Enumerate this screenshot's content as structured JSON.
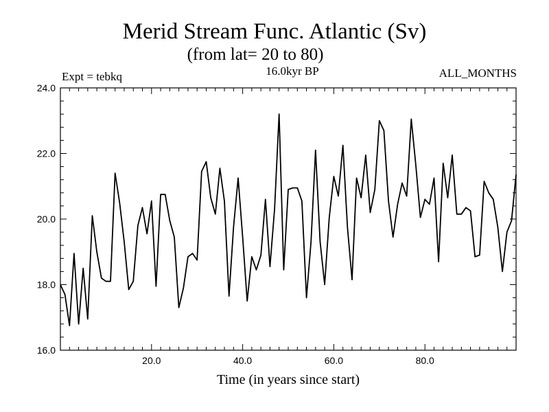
{
  "chart_data": {
    "type": "line",
    "title": "Merid Stream Func. Atlantic (Sv)",
    "subtitle": "(from lat= 20 to 80)",
    "annotation_left": "Expt = tebkq",
    "annotation_center": "16.0kyr BP",
    "annotation_right": "ALL_MONTHS",
    "xlabel": "Time (in years since start)",
    "ylabel": "",
    "xlim": [
      0,
      100
    ],
    "ylim": [
      16.0,
      24.0
    ],
    "xticks": [
      20.0,
      40.0,
      60.0,
      80.0
    ],
    "xtick_labels": [
      "20.0",
      "40.0",
      "60.0",
      "80.0"
    ],
    "yticks": [
      16.0,
      18.0,
      20.0,
      22.0,
      24.0
    ],
    "ytick_labels": [
      "16.0",
      "18.0",
      "20.0",
      "22.0",
      "24.0"
    ],
    "grid": false,
    "line_color": "#000000",
    "series": [
      {
        "name": "Merid Stream Func. Atlantic",
        "x": [
          0,
          1,
          2,
          3,
          4,
          5,
          6,
          7,
          8,
          9,
          10,
          11,
          12,
          13,
          14,
          15,
          16,
          17,
          18,
          19,
          20,
          21,
          22,
          23,
          24,
          25,
          26,
          27,
          28,
          29,
          30,
          31,
          32,
          33,
          34,
          35,
          36,
          37,
          38,
          39,
          40,
          41,
          42,
          43,
          44,
          45,
          46,
          47,
          48,
          49,
          50,
          51,
          52,
          53,
          54,
          55,
          56,
          57,
          58,
          59,
          60,
          61,
          62,
          63,
          64,
          65,
          66,
          67,
          68,
          69,
          70,
          71,
          72,
          73,
          74,
          75,
          76,
          77,
          78,
          79,
          80,
          81,
          82,
          83,
          84,
          85,
          86,
          87,
          88,
          89,
          90,
          91,
          92,
          93,
          94,
          95,
          96,
          97,
          98,
          99,
          100
        ],
        "values": [
          18.0,
          17.7,
          16.75,
          18.95,
          16.8,
          18.5,
          16.95,
          20.1,
          19.0,
          18.2,
          18.1,
          18.1,
          21.4,
          20.5,
          19.3,
          17.85,
          18.1,
          19.8,
          20.35,
          19.55,
          20.55,
          17.95,
          20.75,
          20.75,
          19.95,
          19.45,
          17.3,
          17.9,
          18.85,
          18.95,
          18.75,
          21.45,
          21.75,
          20.65,
          20.15,
          21.55,
          20.55,
          17.65,
          19.75,
          21.25,
          19.45,
          17.5,
          18.85,
          18.45,
          18.9,
          20.6,
          18.55,
          20.3,
          23.2,
          18.45,
          20.9,
          20.95,
          20.95,
          20.55,
          17.6,
          19.3,
          22.1,
          19.3,
          18.0,
          20.05,
          21.3,
          20.7,
          22.25,
          19.75,
          18.15,
          21.25,
          20.65,
          21.95,
          20.2,
          20.9,
          23.0,
          22.7,
          20.55,
          19.45,
          20.45,
          21.1,
          20.7,
          23.05,
          21.65,
          20.05,
          20.6,
          20.45,
          21.25,
          18.7,
          21.7,
          20.65,
          21.95,
          20.15,
          20.15,
          20.35,
          20.25,
          18.85,
          18.9,
          21.15,
          20.8,
          20.6,
          19.75,
          18.4,
          19.6,
          19.95,
          21.35
        ]
      }
    ]
  }
}
